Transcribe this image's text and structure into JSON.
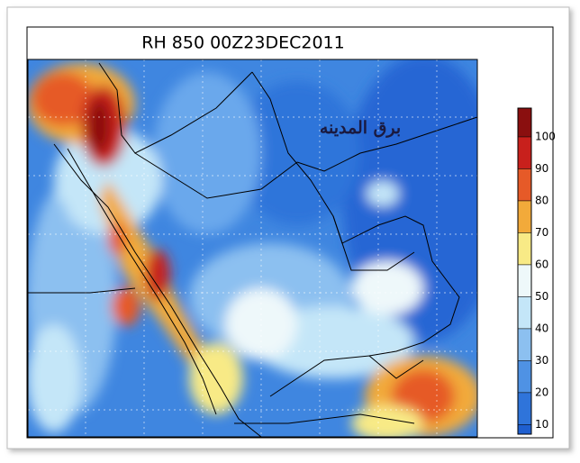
{
  "title": "RH 850 00Z23DEC2011",
  "watermark": "برق المدينه",
  "colorbar": {
    "lim": [
      7,
      109
    ],
    "ticks": [
      10,
      20,
      30,
      40,
      50,
      60,
      70,
      80,
      90,
      100
    ],
    "colors": [
      "#1f5fcf",
      "#2f74da",
      "#4f92e4",
      "#8cc0f0",
      "#c4e6f8",
      "#eef8fa",
      "#f8ea86",
      "#f2aa3a",
      "#e65a28",
      "#c8201c",
      "#8a0f0f"
    ]
  }
}
